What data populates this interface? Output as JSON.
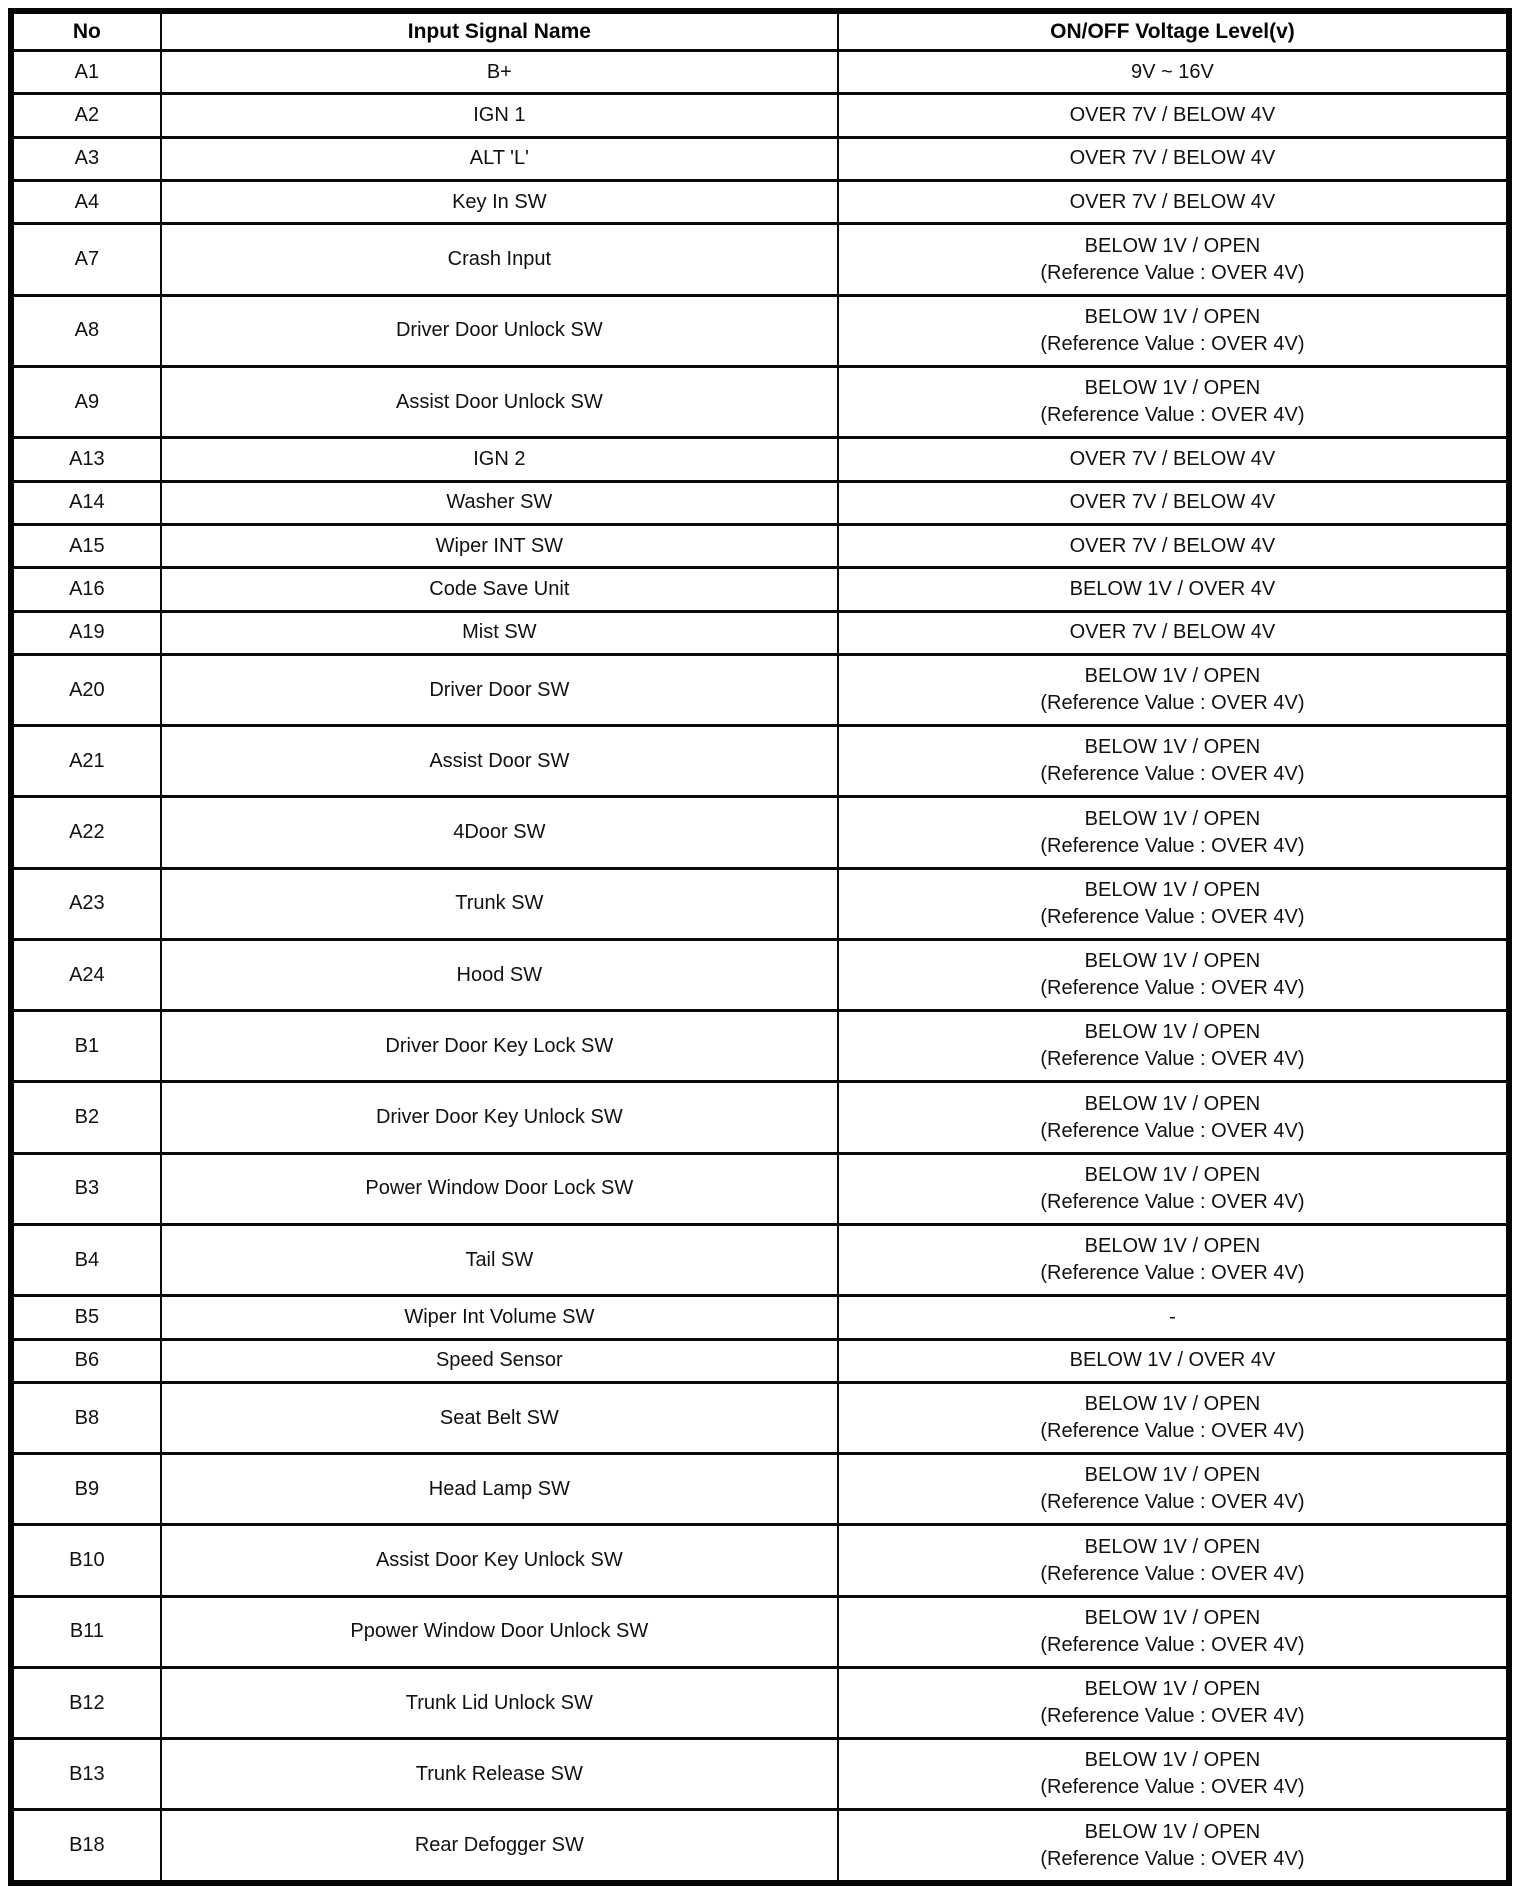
{
  "table": {
    "columns": [
      "No",
      "Input Signal Name",
      "ON/OFF Voltage Level(v)"
    ],
    "rows": [
      {
        "no": "A1",
        "name": "B+",
        "voltage": [
          "9V ~ 16V"
        ]
      },
      {
        "no": "A2",
        "name": "IGN 1",
        "voltage": [
          "OVER 7V / BELOW 4V"
        ]
      },
      {
        "no": "A3",
        "name": "ALT 'L'",
        "voltage": [
          "OVER 7V / BELOW 4V"
        ]
      },
      {
        "no": "A4",
        "name": "Key In SW",
        "voltage": [
          "OVER 7V / BELOW 4V"
        ]
      },
      {
        "no": "A7",
        "name": "Crash Input",
        "voltage": [
          "BELOW 1V / OPEN",
          "(Reference Value : OVER 4V)"
        ]
      },
      {
        "no": "A8",
        "name": "Driver Door Unlock SW",
        "voltage": [
          "BELOW 1V / OPEN",
          "(Reference Value : OVER 4V)"
        ]
      },
      {
        "no": "A9",
        "name": "Assist Door Unlock SW",
        "voltage": [
          "BELOW 1V / OPEN",
          "(Reference Value : OVER 4V)"
        ]
      },
      {
        "no": "A13",
        "name": "IGN 2",
        "voltage": [
          "OVER 7V / BELOW 4V"
        ]
      },
      {
        "no": "A14",
        "name": "Washer SW",
        "voltage": [
          "OVER 7V / BELOW 4V"
        ]
      },
      {
        "no": "A15",
        "name": "Wiper INT SW",
        "voltage": [
          "OVER 7V / BELOW 4V"
        ]
      },
      {
        "no": "A16",
        "name": "Code Save Unit",
        "voltage": [
          "BELOW 1V / OVER 4V"
        ]
      },
      {
        "no": "A19",
        "name": "Mist SW",
        "voltage": [
          "OVER 7V / BELOW 4V"
        ]
      },
      {
        "no": "A20",
        "name": "Driver Door SW",
        "voltage": [
          "BELOW 1V / OPEN",
          "(Reference Value : OVER 4V)"
        ]
      },
      {
        "no": "A21",
        "name": "Assist Door SW",
        "voltage": [
          "BELOW 1V / OPEN",
          "(Reference Value : OVER 4V)"
        ]
      },
      {
        "no": "A22",
        "name": "4Door SW",
        "voltage": [
          "BELOW 1V / OPEN",
          "(Reference Value : OVER 4V)"
        ]
      },
      {
        "no": "A23",
        "name": "Trunk SW",
        "voltage": [
          "BELOW 1V / OPEN",
          "(Reference Value : OVER 4V)"
        ]
      },
      {
        "no": "A24",
        "name": "Hood SW",
        "voltage": [
          "BELOW 1V / OPEN",
          "(Reference Value : OVER 4V)"
        ]
      },
      {
        "no": "B1",
        "name": "Driver Door Key Lock SW",
        "voltage": [
          "BELOW 1V / OPEN",
          "(Reference Value : OVER 4V)"
        ]
      },
      {
        "no": "B2",
        "name": "Driver Door Key Unlock SW",
        "voltage": [
          "BELOW 1V / OPEN",
          "(Reference Value : OVER 4V)"
        ]
      },
      {
        "no": "B3",
        "name": "Power Window Door Lock SW",
        "voltage": [
          "BELOW 1V / OPEN",
          "(Reference Value : OVER 4V)"
        ]
      },
      {
        "no": "B4",
        "name": "Tail SW",
        "voltage": [
          "BELOW 1V / OPEN",
          "(Reference Value : OVER 4V)"
        ]
      },
      {
        "no": "B5",
        "name": "Wiper Int Volume SW",
        "voltage": [
          "-"
        ]
      },
      {
        "no": "B6",
        "name": "Speed Sensor",
        "voltage": [
          "BELOW 1V / OVER 4V"
        ]
      },
      {
        "no": "B8",
        "name": "Seat Belt SW",
        "voltage": [
          "BELOW 1V / OPEN",
          "(Reference Value : OVER 4V)"
        ]
      },
      {
        "no": "B9",
        "name": "Head Lamp SW",
        "voltage": [
          "BELOW 1V / OPEN",
          "(Reference Value : OVER 4V)"
        ]
      },
      {
        "no": "B10",
        "name": "Assist Door Key Unlock SW",
        "voltage": [
          "BELOW 1V / OPEN",
          "(Reference Value : OVER 4V)"
        ]
      },
      {
        "no": "B11",
        "name": "Ppower Window Door Unlock SW",
        "voltage": [
          "BELOW 1V / OPEN",
          "(Reference Value : OVER 4V)"
        ]
      },
      {
        "no": "B12",
        "name": "Trunk Lid Unlock SW",
        "voltage": [
          "BELOW 1V / OPEN",
          "(Reference Value : OVER 4V)"
        ]
      },
      {
        "no": "B13",
        "name": "Trunk Release SW",
        "voltage": [
          "BELOW 1V / OPEN",
          "(Reference Value : OVER 4V)"
        ]
      },
      {
        "no": "B18",
        "name": "Rear Defogger SW",
        "voltage": [
          "BELOW 1V / OPEN",
          "(Reference Value : OVER 4V)"
        ]
      }
    ]
  }
}
